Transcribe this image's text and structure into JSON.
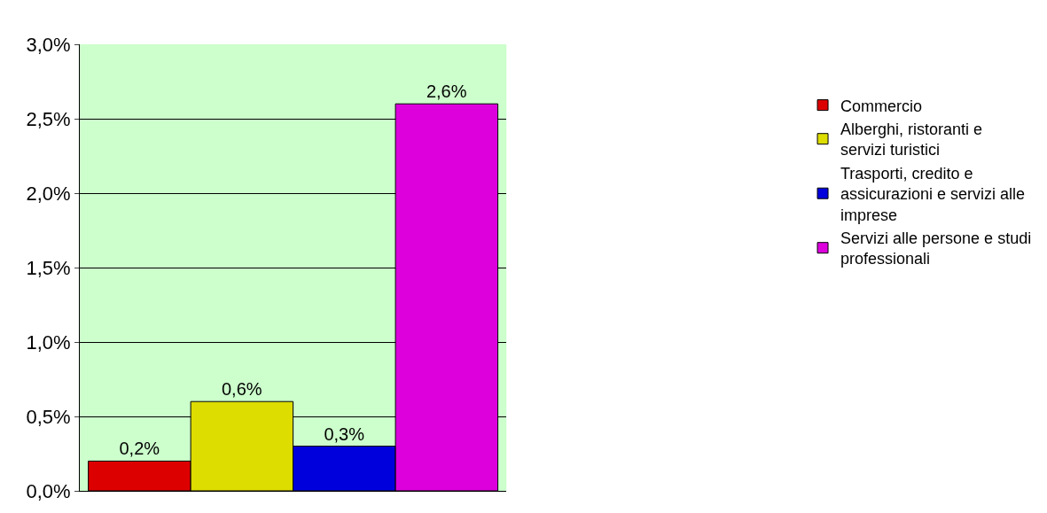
{
  "chart_data": {
    "type": "bar",
    "categories": [
      null
    ],
    "series": [
      {
        "name": "Commercio",
        "color": "#dd0000",
        "values": [
          0.2
        ],
        "value_labels": [
          "0,2%"
        ]
      },
      {
        "name": "Alberghi, ristoranti e servizi turistici",
        "color": "#dddd00",
        "values": [
          0.6
        ],
        "value_labels": [
          "0,6%"
        ]
      },
      {
        "name": "Trasporti, credito e assicurazioni e servizi alle imprese",
        "color": "#0000dd",
        "values": [
          0.3
        ],
        "value_labels": [
          "0,3%"
        ]
      },
      {
        "name": "Servizi alle persone e studi professionali",
        "color": "#dd00dd",
        "values": [
          2.6
        ],
        "value_labels": [
          "2,6%"
        ]
      }
    ],
    "ylim": [
      0,
      3
    ],
    "yticks": [
      {
        "value": 0,
        "label": "0,0%"
      },
      {
        "value": 0.5,
        "label": "0,5%"
      },
      {
        "value": 1,
        "label": "1,0%"
      },
      {
        "value": 1.5,
        "label": "1,5%"
      },
      {
        "value": 2,
        "label": "2,0%"
      },
      {
        "value": 2.5,
        "label": "2,5%"
      },
      {
        "value": 3,
        "label": "3,0%"
      }
    ],
    "grid": "y",
    "legend": "right"
  }
}
